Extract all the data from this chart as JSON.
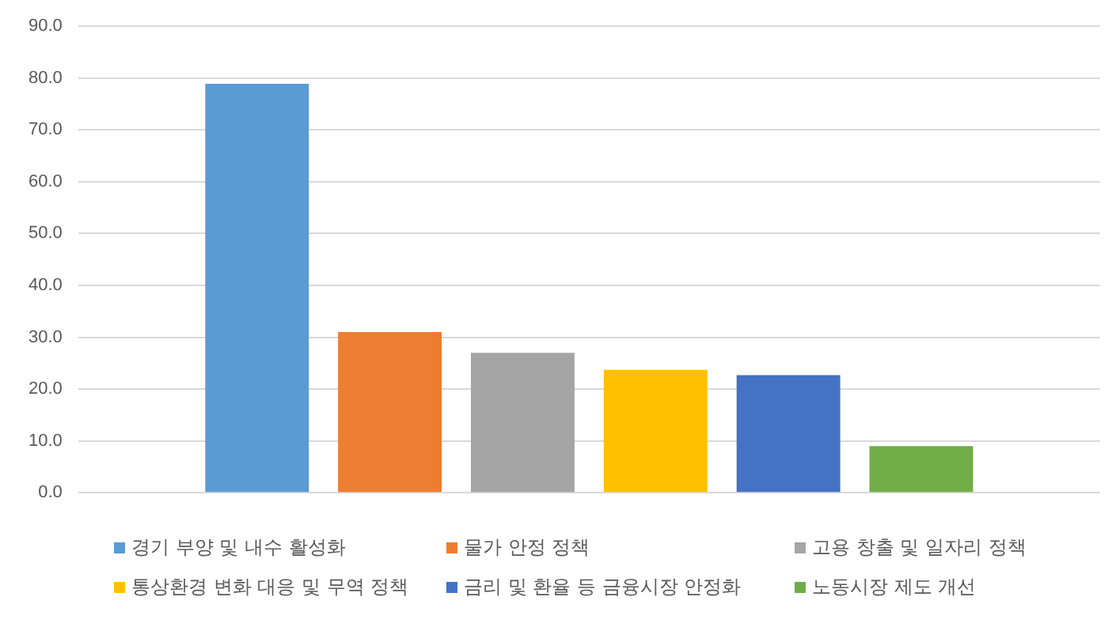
{
  "chart_data": {
    "type": "bar",
    "categories": [
      null
    ],
    "series": [
      {
        "name": "경기 부양 및 내수 활성화",
        "color": "#5b9bd5",
        "values": [
          78.9
        ]
      },
      {
        "name": "물가 안정 정책",
        "color": "#ed7d31",
        "values": [
          31.0
        ]
      },
      {
        "name": "고용 창출 및 일자리 정책",
        "color": "#a5a5a5",
        "values": [
          27.0
        ]
      },
      {
        "name": "통상환경 변화 대응 및 무역 정책",
        "color": "#ffc000",
        "values": [
          23.7
        ]
      },
      {
        "name": "금리 및 환율 등 금융시장 안정화",
        "color": "#4472c4",
        "values": [
          22.7
        ]
      },
      {
        "name": "노동시장 제도 개선",
        "color": "#70ad47",
        "values": [
          9.0
        ]
      }
    ],
    "ylim": [
      0,
      90
    ],
    "yticks": [
      {
        "value": 0,
        "label": "0.0"
      },
      {
        "value": 10,
        "label": "10.0"
      },
      {
        "value": 20,
        "label": "20.0"
      },
      {
        "value": 30,
        "label": "30.0"
      },
      {
        "value": 40,
        "label": "40.0"
      },
      {
        "value": 50,
        "label": "50.0"
      },
      {
        "value": 60,
        "label": "60.0"
      },
      {
        "value": 70,
        "label": "70.0"
      },
      {
        "value": 80,
        "label": "80.0"
      },
      {
        "value": 90,
        "label": "90.0"
      }
    ],
    "grid": "y",
    "legend": "bottom"
  }
}
